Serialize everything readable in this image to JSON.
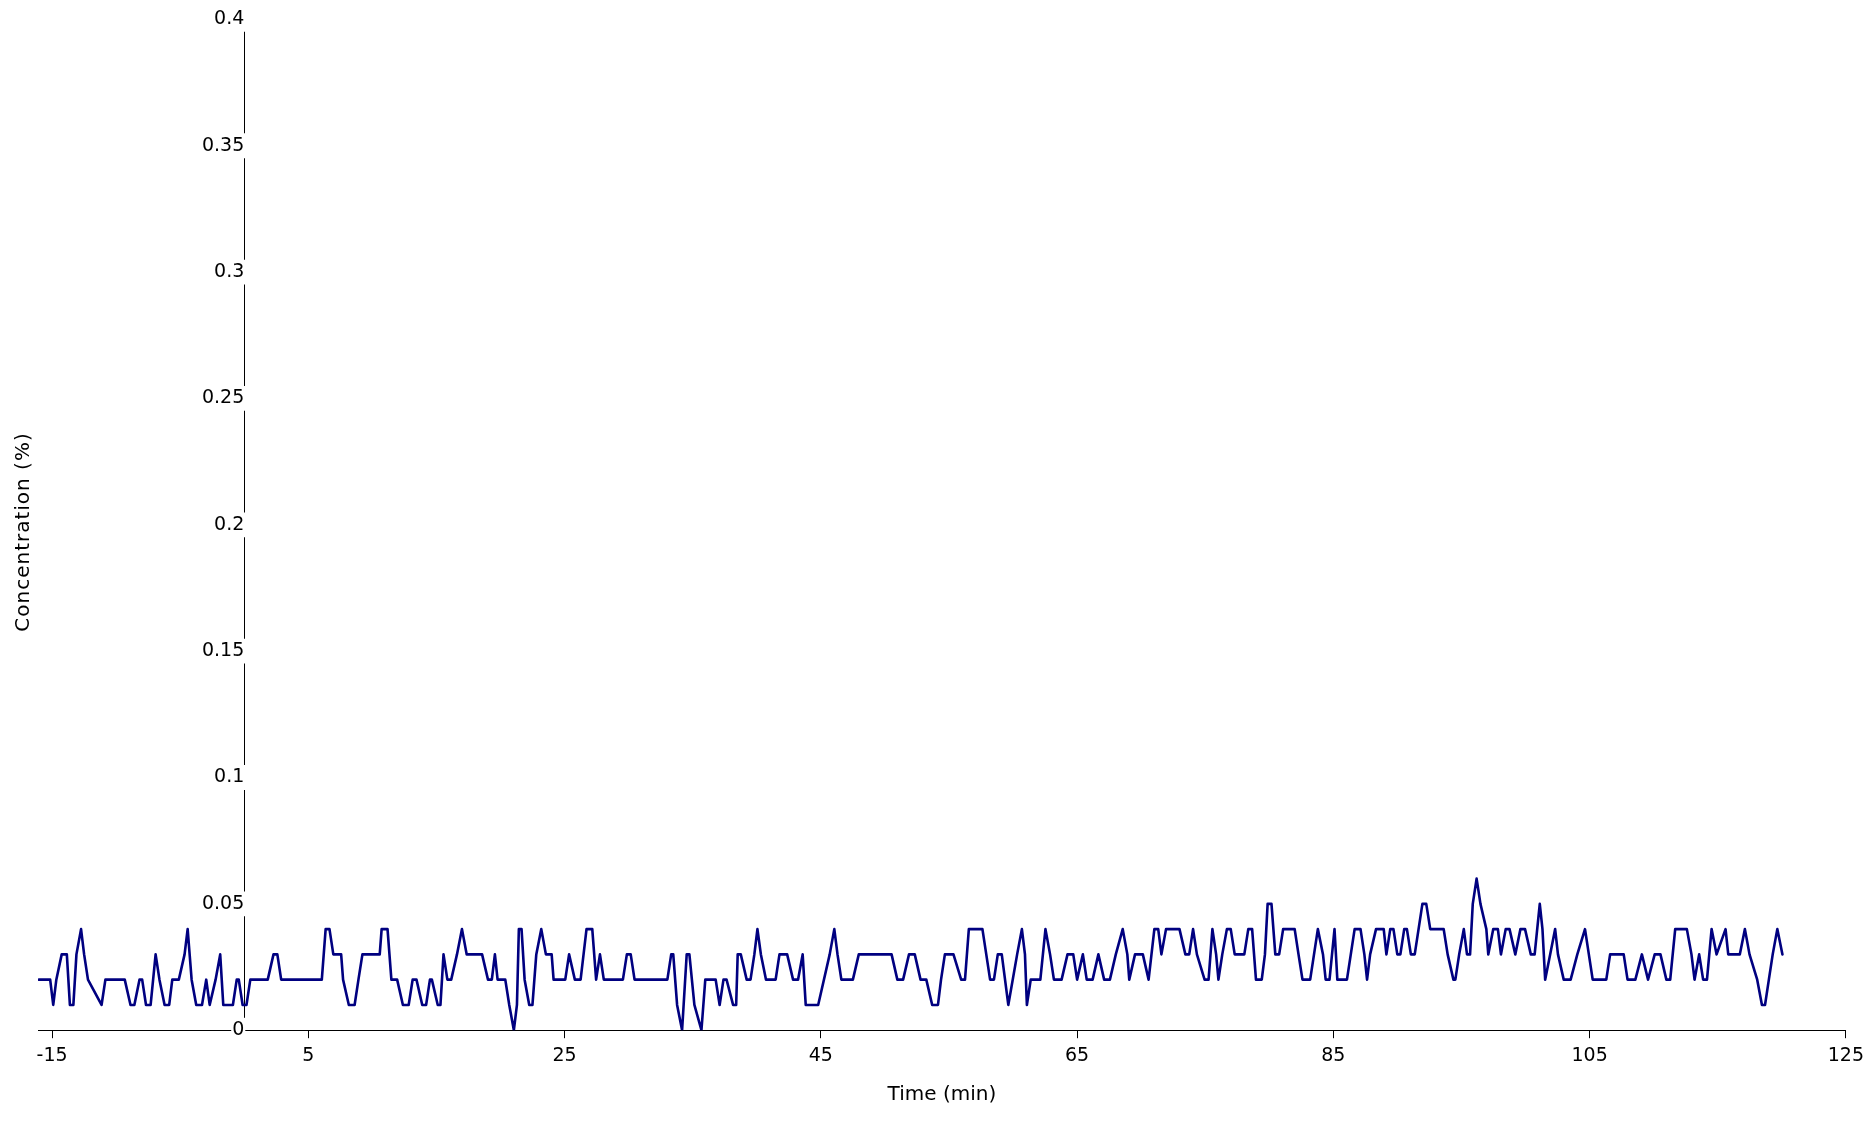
{
  "chart_data": {
    "type": "line",
    "xlabel": "Time (min)",
    "ylabel": "Concentration (%)",
    "xlim": [
      -16.1,
      125
    ],
    "xticks": [
      -15,
      5,
      25,
      45,
      65,
      85,
      105,
      125
    ],
    "ylim": [
      0,
      0.4
    ],
    "yticks": [
      0,
      0.05,
      0.1,
      0.15,
      0.2,
      0.25,
      0.3,
      0.35,
      0.4
    ],
    "grid": false,
    "legend": false,
    "marker": "none",
    "line_style": "solid",
    "series": [
      {
        "color": "#000080",
        "x": [
          -16.03,
          -15.66,
          -15.15,
          -14.91,
          -14.67,
          -14.25,
          -13.85,
          -13.61,
          -13.34,
          -13.1,
          -12.74,
          -12.5,
          -12.2,
          -11.14,
          -10.84,
          -9.48,
          -9.33,
          -8.88,
          -8.58,
          -8.18,
          -7.97,
          -7.67,
          -7.31,
          -6.92,
          -6.62,
          -6.22,
          -5.86,
          -5.62,
          -5.11,
          -4.66,
          -4.42,
          -4.11,
          -3.75,
          -3.3,
          -2.97,
          -2.7,
          -2.24,
          -1.88,
          -1.64,
          -1.34,
          -0.89,
          -0.59,
          -0.43,
          -0.13,
          0.17,
          0.47,
          0.77,
          1.83,
          2.28,
          2.58,
          2.88,
          5.45,
          6.05,
          6.35,
          6.65,
          6.95,
          7.56,
          7.71,
          8.16,
          8.61,
          8.91,
          9.22,
          9.52,
          10.57,
          10.72,
          11.18,
          11.48,
          11.93,
          12.38,
          12.83,
          13.14,
          13.44,
          13.89,
          14.19,
          14.49,
          14.64,
          15.1,
          15.31,
          15.55,
          15.85,
          16.15,
          16.6,
          16.99,
          17.36,
          17.66,
          18.56,
          19.02,
          19.32,
          19.56,
          19.77,
          20.37,
          20.68,
          21.04,
          21.28,
          21.43,
          21.64,
          21.88,
          22.24,
          22.49,
          22.79,
          23.18,
          23.54,
          23.99,
          24.14,
          24.75,
          25.05,
          25.35,
          25.8,
          26.25,
          26.71,
          27.16,
          27.46,
          27.76,
          28.06,
          28.52,
          28.8,
          29.55,
          29.86,
          30.16,
          30.46,
          30.76,
          33.02,
          33.32,
          33.48,
          33.78,
          34.17,
          34.53,
          34.74,
          35.13,
          35.68,
          35.98,
          36.34,
          36.79,
          37.1,
          37.4,
          37.64,
          38.15,
          38.39,
          38.51,
          38.75,
          39.21,
          39.51,
          39.81,
          40.05,
          40.32,
          40.72,
          41.47,
          41.77,
          42.37,
          42.83,
          43.22,
          43.58,
          43.82,
          44.24,
          44.79,
          45.69,
          46.05,
          46.3,
          46.6,
          46.9,
          47.5,
          47.96,
          48.41,
          50.52,
          50.97,
          51.42,
          51.88,
          52.33,
          52.78,
          53.23,
          53.69,
          54.14,
          54.38,
          54.68,
          55.35,
          55.95,
          56.25,
          56.55,
          56.85,
          57.61,
          57.91,
          58.21,
          58.51,
          58.81,
          59.12,
          59.63,
          60.32,
          60.69,
          60.93,
          61.08,
          61.38,
          61.68,
          62.13,
          62.53,
          62.89,
          63.19,
          63.79,
          64.25,
          64.7,
          65,
          65.45,
          65.75,
          66.21,
          66.66,
          67.11,
          67.56,
          68.02,
          68.56,
          68.92,
          69.07,
          69.52,
          70.13,
          70.58,
          71.03,
          71.33,
          71.58,
          71.94,
          72.99,
          73.45,
          73.75,
          74.05,
          74.35,
          74.95,
          75.26,
          75.56,
          75.85,
          76.03,
          76.33,
          76.69,
          76.99,
          77.3,
          77.6,
          78.05,
          78.36,
          78.66,
          78.96,
          79.41,
          79.66,
          79.87,
          80.17,
          80.47,
          80.77,
          81.08,
          81.68,
          81.98,
          82.28,
          82.59,
          83.19,
          83.49,
          83.79,
          84.19,
          84.4,
          84.7,
          85.09,
          85.31,
          85.61,
          86.06,
          86.36,
          86.66,
          87.12,
          87.42,
          87.63,
          87.87,
          88.33,
          88.93,
          89.14,
          89.44,
          89.69,
          89.99,
          90.23,
          90.53,
          90.74,
          91.05,
          91.35,
          91.65,
          91.95,
          92.25,
          92.56,
          92.86,
          93.61,
          93.92,
          94.37,
          94.52,
          94.82,
          95.18,
          95.43,
          95.67,
          95.88,
          96.18,
          96.48,
          96.94,
          97.09,
          97.48,
          97.84,
          98.08,
          98.45,
          98.75,
          99.2,
          99.6,
          99.96,
          100.41,
          100.71,
          101.11,
          101.32,
          101.53,
          101.92,
          102.31,
          102.53,
          102.98,
          103.52,
          104.04,
          104.64,
          104.94,
          105.24,
          105.7,
          106.3,
          106.6,
          107.66,
          107.96,
          108.57,
          109.08,
          109.56,
          110.08,
          110.53,
          110.99,
          111.29,
          111.68,
          112.59,
          112.95,
          113.19,
          113.55,
          113.86,
          114.16,
          114.52,
          114.91,
          115.61,
          115.82,
          116.72,
          117.12,
          117.48,
          118.08,
          118.45,
          118.69,
          118.99,
          119.29,
          119.65,
          120.05
        ],
        "values": [
          0.02,
          0.02,
          0.02,
          0.01,
          0.02,
          0.03,
          0.03,
          0.01,
          0.01,
          0.03,
          0.04,
          0.03,
          0.02,
          0.01,
          0.02,
          0.02,
          0.02,
          0.01,
          0.01,
          0.02,
          0.02,
          0.01,
          0.01,
          0.03,
          0.02,
          0.01,
          0.01,
          0.02,
          0.02,
          0.03,
          0.04,
          0.02,
          0.01,
          0.01,
          0.02,
          0.01,
          0.02,
          0.03,
          0.01,
          0.01,
          0.01,
          0.02,
          0.02,
          0.01,
          0.01,
          0.02,
          0.02,
          0.02,
          0.03,
          0.03,
          0.02,
          0.02,
          0.02,
          0.04,
          0.04,
          0.03,
          0.03,
          0.02,
          0.01,
          0.01,
          0.02,
          0.03,
          0.03,
          0.03,
          0.04,
          0.04,
          0.02,
          0.02,
          0.01,
          0.01,
          0.02,
          0.02,
          0.01,
          0.01,
          0.02,
          0.02,
          0.01,
          0.01,
          0.03,
          0.02,
          0.02,
          0.03,
          0.04,
          0.03,
          0.03,
          0.03,
          0.02,
          0.02,
          0.03,
          0.02,
          0.02,
          0.01,
          0,
          0.01,
          0.04,
          0.04,
          0.02,
          0.01,
          0.01,
          0.03,
          0.04,
          0.03,
          0.03,
          0.02,
          0.02,
          0.02,
          0.03,
          0.02,
          0.02,
          0.04,
          0.04,
          0.02,
          0.03,
          0.02,
          0.02,
          0.02,
          0.02,
          0.03,
          0.03,
          0.02,
          0.02,
          0.02,
          0.03,
          0.03,
          0.01,
          0,
          0.03,
          0.03,
          0.01,
          0,
          0.02,
          0.02,
          0.02,
          0.01,
          0.02,
          0.02,
          0.01,
          0.01,
          0.03,
          0.03,
          0.02,
          0.02,
          0.03,
          0.04,
          0.03,
          0.02,
          0.02,
          0.03,
          0.03,
          0.02,
          0.02,
          0.03,
          0.01,
          0.01,
          0.01,
          0.03,
          0.04,
          0.03,
          0.02,
          0.02,
          0.02,
          0.03,
          0.03,
          0.03,
          0.02,
          0.02,
          0.03,
          0.03,
          0.02,
          0.02,
          0.01,
          0.01,
          0.02,
          0.03,
          0.03,
          0.02,
          0.02,
          0.04,
          0.04,
          0.04,
          0.03,
          0.02,
          0.02,
          0.03,
          0.03,
          0.01,
          0.03,
          0.04,
          0.03,
          0.01,
          0.02,
          0.02,
          0.02,
          0.04,
          0.03,
          0.02,
          0.02,
          0.03,
          0.03,
          0.02,
          0.03,
          0.02,
          0.02,
          0.03,
          0.02,
          0.02,
          0.03,
          0.04,
          0.03,
          0.02,
          0.03,
          0.03,
          0.02,
          0.04,
          0.04,
          0.03,
          0.04,
          0.04,
          0.03,
          0.03,
          0.04,
          0.03,
          0.02,
          0.02,
          0.04,
          0.03,
          0.02,
          0.03,
          0.04,
          0.04,
          0.03,
          0.03,
          0.03,
          0.04,
          0.04,
          0.02,
          0.02,
          0.03,
          0.05,
          0.05,
          0.03,
          0.03,
          0.04,
          0.04,
          0.04,
          0.03,
          0.02,
          0.02,
          0.03,
          0.04,
          0.03,
          0.02,
          0.02,
          0.04,
          0.02,
          0.02,
          0.02,
          0.03,
          0.04,
          0.04,
          0.03,
          0.02,
          0.03,
          0.04,
          0.04,
          0.03,
          0.04,
          0.04,
          0.03,
          0.03,
          0.04,
          0.04,
          0.03,
          0.03,
          0.04,
          0.05,
          0.05,
          0.04,
          0.04,
          0.04,
          0.03,
          0.02,
          0.02,
          0.03,
          0.04,
          0.03,
          0.03,
          0.05,
          0.06,
          0.05,
          0.04,
          0.03,
          0.04,
          0.04,
          0.03,
          0.04,
          0.04,
          0.03,
          0.04,
          0.04,
          0.03,
          0.03,
          0.05,
          0.04,
          0.02,
          0.03,
          0.04,
          0.03,
          0.02,
          0.02,
          0.03,
          0.04,
          0.03,
          0.02,
          0.02,
          0.02,
          0.03,
          0.03,
          0.02,
          0.02,
          0.03,
          0.02,
          0.03,
          0.03,
          0.02,
          0.02,
          0.04,
          0.04,
          0.03,
          0.02,
          0.03,
          0.02,
          0.02,
          0.04,
          0.03,
          0.04,
          0.03,
          0.03,
          0.04,
          0.03,
          0.02,
          0.01,
          0.01,
          0.02,
          0.03,
          0.04,
          0.03
        ]
      }
    ]
  }
}
